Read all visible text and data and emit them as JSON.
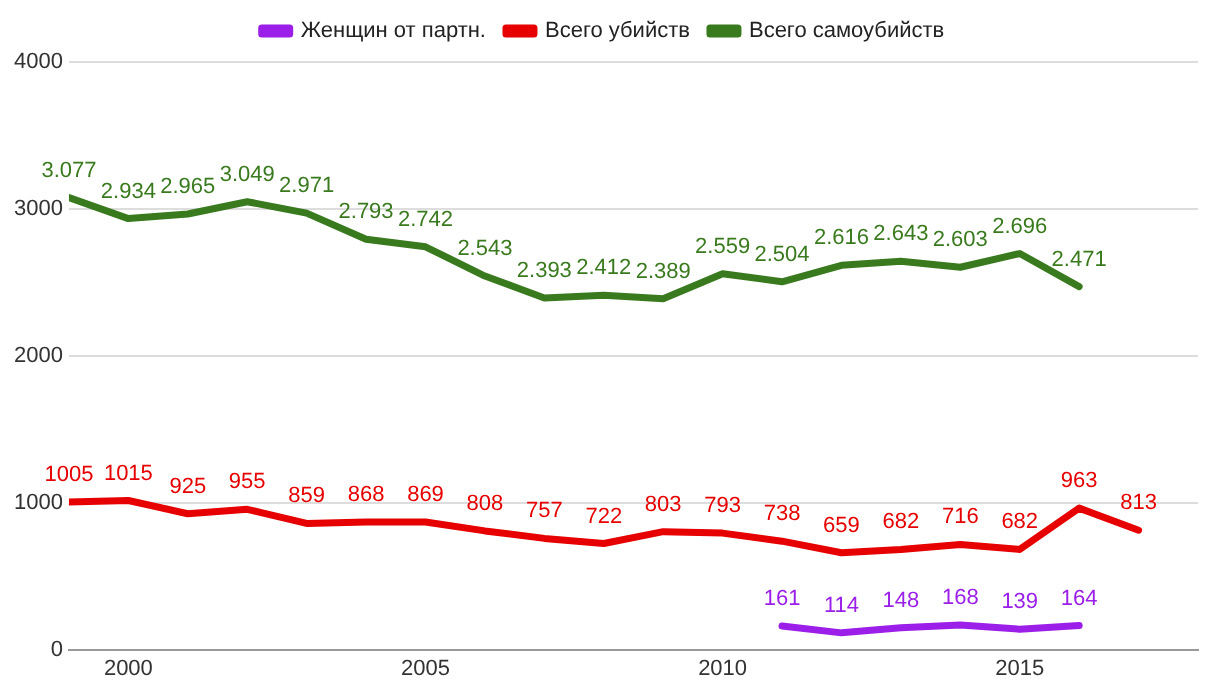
{
  "chart_data": {
    "type": "line",
    "xlim": [
      1999,
      2018
    ],
    "xticks": [
      2000,
      2005,
      2010,
      2015
    ],
    "ylim": [
      0,
      4000
    ],
    "yticks": [
      0,
      1000,
      2000,
      3000,
      4000
    ],
    "grid": "y",
    "legend": "top",
    "marker": "none",
    "line_style": "solid",
    "series": [
      {
        "name": "Женщин от партн.",
        "color": "#9b1fe8",
        "x": [
          2011,
          2012,
          2013,
          2014,
          2015,
          2016
        ],
        "values": [
          161,
          114,
          148,
          168,
          139,
          164
        ],
        "value_labels": [
          "161",
          "114",
          "148",
          "168",
          "139",
          "164"
        ]
      },
      {
        "name": "Всего убийств",
        "color": "#e60000",
        "x": [
          1999,
          2000,
          2001,
          2002,
          2003,
          2004,
          2005,
          2006,
          2007,
          2008,
          2009,
          2010,
          2011,
          2012,
          2013,
          2014,
          2015,
          2016,
          2017
        ],
        "values": [
          1005,
          1015,
          925,
          955,
          859,
          868,
          869,
          808,
          757,
          722,
          803,
          793,
          738,
          659,
          682,
          716,
          682,
          963,
          813
        ],
        "value_labels": [
          "1005",
          "1015",
          "925",
          "955",
          "859",
          "868",
          "869",
          "808",
          "757",
          "722",
          "803",
          "793",
          "738",
          "659",
          "682",
          "716",
          "682",
          "963",
          "813"
        ]
      },
      {
        "name": "Всего самоубийств",
        "color": "#3a7a1e",
        "x": [
          1999,
          2000,
          2001,
          2002,
          2003,
          2004,
          2005,
          2006,
          2007,
          2008,
          2009,
          2010,
          2011,
          2012,
          2013,
          2014,
          2015,
          2016
        ],
        "values": [
          3077,
          2934,
          2965,
          3049,
          2971,
          2793,
          2742,
          2543,
          2393,
          2412,
          2389,
          2559,
          2504,
          2616,
          2643,
          2603,
          2696,
          2471
        ],
        "value_labels": [
          "3.077",
          "2.934",
          "2.965",
          "3.049",
          "2.971",
          "2.793",
          "2.742",
          "2.543",
          "2.393",
          "2.412",
          "2.389",
          "2.559",
          "2.504",
          "2.616",
          "2.643",
          "2.603",
          "2.696",
          "2.471"
        ]
      }
    ]
  }
}
